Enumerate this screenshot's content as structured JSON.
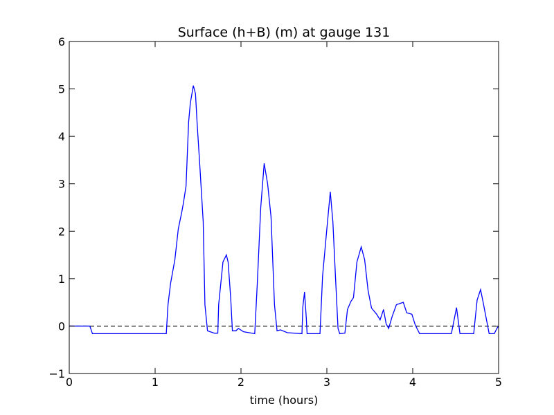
{
  "chart_data": {
    "type": "line",
    "title": "Surface (h+B) (m) at gauge 131",
    "x_label": "time (hours)",
    "xlim": [
      0,
      5
    ],
    "ylim": [
      -1,
      6
    ],
    "xticks": [
      0,
      1,
      2,
      3,
      4,
      5
    ],
    "yticks": [
      {
        "value": -1,
        "label": "−1"
      },
      0,
      1,
      2,
      3,
      4,
      5,
      6
    ],
    "grid": false,
    "reference_line": {
      "y": 0,
      "color": "#000000",
      "dash": "dashed"
    },
    "series": [
      {
        "color": "#0000ff",
        "x": [
          0,
          0.24,
          0.27,
          1.13,
          1.15,
          1.18,
          1.23,
          1.27,
          1.31,
          1.33,
          1.36,
          1.39,
          1.41,
          1.445,
          1.47,
          1.49,
          1.52,
          1.56,
          1.58,
          1.61,
          1.69,
          1.73,
          1.74,
          1.79,
          1.83,
          1.85,
          1.88,
          1.9,
          1.94,
          1.97,
          2.03,
          2.16,
          2.19,
          2.23,
          2.27,
          2.31,
          2.35,
          2.39,
          2.42,
          2.46,
          2.54,
          2.71,
          2.72,
          2.74,
          2.76,
          2.77,
          2.92,
          2.95,
          3.0,
          3.04,
          3.07,
          3.1,
          3.13,
          3.15,
          3.21,
          3.24,
          3.28,
          3.31,
          3.35,
          3.4,
          3.44,
          3.48,
          3.52,
          3.58,
          3.62,
          3.66,
          3.69,
          3.72,
          3.76,
          3.81,
          3.89,
          3.93,
          3.99,
          4.03,
          4.08,
          4.45,
          4.51,
          4.55,
          4.71,
          4.75,
          4.79,
          4.82,
          4.89,
          4.95,
          4.98,
          5.0
        ],
        "values": [
          0,
          0,
          -0.16,
          -0.16,
          0.45,
          0.9,
          1.4,
          2.05,
          2.4,
          2.6,
          2.95,
          4.3,
          4.7,
          5.07,
          4.9,
          4.25,
          3.4,
          2.2,
          0.45,
          -0.1,
          -0.15,
          -0.15,
          0.45,
          1.35,
          1.5,
          1.35,
          0.6,
          -0.1,
          -0.1,
          -0.05,
          -0.12,
          -0.16,
          0.9,
          2.5,
          3.43,
          3.0,
          2.3,
          0.45,
          -0.1,
          -0.08,
          -0.14,
          -0.16,
          0.4,
          0.72,
          0.18,
          -0.16,
          -0.16,
          1.05,
          2.05,
          2.83,
          2.2,
          1.05,
          -0.05,
          -0.16,
          -0.15,
          0.35,
          0.52,
          0.6,
          1.35,
          1.67,
          1.4,
          0.75,
          0.38,
          0.25,
          0.13,
          0.35,
          0.05,
          -0.05,
          0.2,
          0.45,
          0.5,
          0.28,
          0.25,
          0.02,
          -0.16,
          -0.16,
          0.39,
          -0.16,
          -0.16,
          0.55,
          0.77,
          0.5,
          -0.16,
          -0.16,
          -0.05,
          0
        ]
      }
    ]
  }
}
